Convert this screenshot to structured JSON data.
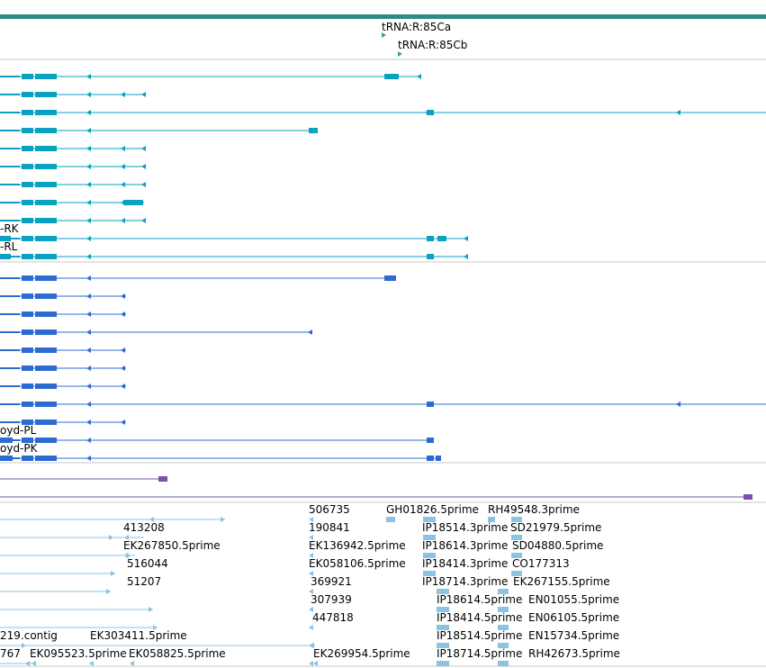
{
  "colors": {
    "top_bar": "#2e8b87",
    "separator": "#c8c8c8",
    "trna": "#3aa3a0",
    "cyan_track": "#0aa2c0",
    "blue_track": "#2e6bd0",
    "purple_track": "#7a4fb0",
    "light_track": "#8cc2e4"
  },
  "trna_labels": [
    "tRNA:R:85Ca",
    "tRNA:R:85Cb"
  ],
  "transcripts_a": {
    "left_labels": [
      "-RK",
      "-RL"
    ],
    "row_count": 11
  },
  "transcripts_b": {
    "left_labels": [
      "oyd-PL",
      "oyd-PK"
    ],
    "row_count": 11
  },
  "est_labels": [
    {
      "id": "506735"
    },
    {
      "id": "GH01826.5prime"
    },
    {
      "id": "RH49548.3prime"
    },
    {
      "id": "413208"
    },
    {
      "id": "190841"
    },
    {
      "id": "IP18514.3prime"
    },
    {
      "id": "SD21979.5prime"
    },
    {
      "id": "EK267850.5prime"
    },
    {
      "id": "EK136942.5prime"
    },
    {
      "id": "IP18614.3prime"
    },
    {
      "id": "SD04880.5prime"
    },
    {
      "id": "516044"
    },
    {
      "id": "EK058106.5prime"
    },
    {
      "id": "IP18414.3prime"
    },
    {
      "id": "CO177313"
    },
    {
      "id": "51207"
    },
    {
      "id": "369921"
    },
    {
      "id": "IP18714.3prime"
    },
    {
      "id": "EK267155.5prime"
    },
    {
      "id": "307939"
    },
    {
      "id": "IP18614.5prime"
    },
    {
      "id": "EN01055.5prime"
    },
    {
      "id": "447818"
    },
    {
      "id": "IP18414.5prime"
    },
    {
      "id": "EN06105.5prime"
    },
    {
      "id": "219.contig"
    },
    {
      "id": "EK303411.5prime"
    },
    {
      "id": "IP18514.5prime"
    },
    {
      "id": "EN15734.5prime"
    },
    {
      "id": "767"
    },
    {
      "id": "EK095523.5prime"
    },
    {
      "id": "EK058825.5prime"
    },
    {
      "id": "EK269954.5prime"
    },
    {
      "id": "IP18714.5prime"
    },
    {
      "id": "RH42673.5prime"
    }
  ]
}
